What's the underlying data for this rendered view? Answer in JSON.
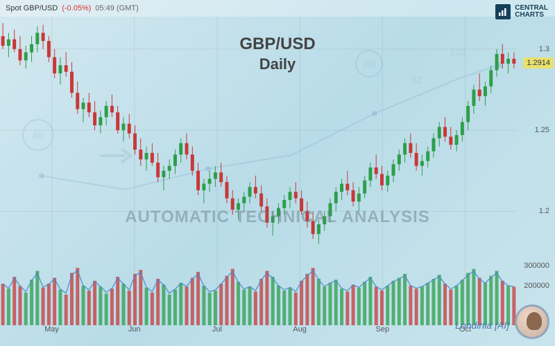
{
  "header": {
    "pair": "Spot GBP/USD",
    "change": "(-0.05%)",
    "time": "05:49 (GMT)"
  },
  "logo": {
    "line1": "CENTRAL",
    "line2": "CHARTS"
  },
  "title": {
    "pair": "GBP/USD",
    "timeframe": "Daily"
  },
  "watermark": "AUTOMATIC TECHNICAL ANALYSIS",
  "ai_label": "Londinia [AI]",
  "chart": {
    "type": "candlestick",
    "ylim": [
      1.175,
      1.32
    ],
    "yticks": [
      1.2,
      1.25,
      1.3
    ],
    "current_price": 1.2914,
    "current_price_label": "1.2914",
    "months": [
      "May",
      "Jun",
      "Jul",
      "Aug",
      "Sep",
      "Oct"
    ],
    "month_positions": [
      0.1,
      0.26,
      0.42,
      0.58,
      0.74,
      0.9
    ],
    "volume_ticks": [
      200000,
      300000
    ],
    "volume_max": 350000,
    "bg_gradient": [
      "#d4e8f0",
      "#b8dce8"
    ],
    "grid_color": "rgba(100,100,100,0.12)",
    "up_color": "#2e9e4a",
    "down_color": "#c83838",
    "volume_line_color": "#4a8ac8",
    "candles": [
      {
        "o": 1.308,
        "h": 1.316,
        "l": 1.3,
        "c": 1.302,
        "v": 210000
      },
      {
        "o": 1.302,
        "h": 1.31,
        "l": 1.295,
        "c": 1.306,
        "v": 185000
      },
      {
        "o": 1.306,
        "h": 1.312,
        "l": 1.298,
        "c": 1.3,
        "v": 245000
      },
      {
        "o": 1.3,
        "h": 1.308,
        "l": 1.29,
        "c": 1.293,
        "v": 198000
      },
      {
        "o": 1.293,
        "h": 1.302,
        "l": 1.288,
        "c": 1.298,
        "v": 165000
      },
      {
        "o": 1.298,
        "h": 1.308,
        "l": 1.292,
        "c": 1.303,
        "v": 230000
      },
      {
        "o": 1.303,
        "h": 1.314,
        "l": 1.298,
        "c": 1.31,
        "v": 275000
      },
      {
        "o": 1.31,
        "h": 1.315,
        "l": 1.3,
        "c": 1.305,
        "v": 190000
      },
      {
        "o": 1.305,
        "h": 1.308,
        "l": 1.292,
        "c": 1.295,
        "v": 210000
      },
      {
        "o": 1.295,
        "h": 1.3,
        "l": 1.282,
        "c": 1.285,
        "v": 240000
      },
      {
        "o": 1.285,
        "h": 1.295,
        "l": 1.278,
        "c": 1.29,
        "v": 180000
      },
      {
        "o": 1.29,
        "h": 1.298,
        "l": 1.283,
        "c": 1.286,
        "v": 155000
      },
      {
        "o": 1.286,
        "h": 1.292,
        "l": 1.27,
        "c": 1.273,
        "v": 265000
      },
      {
        "o": 1.273,
        "h": 1.28,
        "l": 1.26,
        "c": 1.263,
        "v": 290000
      },
      {
        "o": 1.263,
        "h": 1.27,
        "l": 1.255,
        "c": 1.267,
        "v": 200000
      },
      {
        "o": 1.267,
        "h": 1.273,
        "l": 1.258,
        "c": 1.261,
        "v": 175000
      },
      {
        "o": 1.261,
        "h": 1.268,
        "l": 1.25,
        "c": 1.253,
        "v": 225000
      },
      {
        "o": 1.253,
        "h": 1.262,
        "l": 1.248,
        "c": 1.258,
        "v": 195000
      },
      {
        "o": 1.258,
        "h": 1.268,
        "l": 1.253,
        "c": 1.265,
        "v": 160000
      },
      {
        "o": 1.265,
        "h": 1.272,
        "l": 1.258,
        "c": 1.261,
        "v": 185000
      },
      {
        "o": 1.261,
        "h": 1.265,
        "l": 1.248,
        "c": 1.25,
        "v": 245000
      },
      {
        "o": 1.25,
        "h": 1.258,
        "l": 1.243,
        "c": 1.254,
        "v": 210000
      },
      {
        "o": 1.254,
        "h": 1.26,
        "l": 1.245,
        "c": 1.248,
        "v": 175000
      },
      {
        "o": 1.248,
        "h": 1.253,
        "l": 1.235,
        "c": 1.238,
        "v": 260000
      },
      {
        "o": 1.238,
        "h": 1.245,
        "l": 1.228,
        "c": 1.232,
        "v": 280000
      },
      {
        "o": 1.232,
        "h": 1.24,
        "l": 1.225,
        "c": 1.236,
        "v": 190000
      },
      {
        "o": 1.236,
        "h": 1.242,
        "l": 1.228,
        "c": 1.23,
        "v": 165000
      },
      {
        "o": 1.23,
        "h": 1.236,
        "l": 1.218,
        "c": 1.221,
        "v": 235000
      },
      {
        "o": 1.221,
        "h": 1.228,
        "l": 1.213,
        "c": 1.225,
        "v": 205000
      },
      {
        "o": 1.225,
        "h": 1.232,
        "l": 1.22,
        "c": 1.228,
        "v": 155000
      },
      {
        "o": 1.228,
        "h": 1.238,
        "l": 1.223,
        "c": 1.235,
        "v": 180000
      },
      {
        "o": 1.235,
        "h": 1.245,
        "l": 1.23,
        "c": 1.242,
        "v": 215000
      },
      {
        "o": 1.242,
        "h": 1.248,
        "l": 1.232,
        "c": 1.235,
        "v": 195000
      },
      {
        "o": 1.235,
        "h": 1.24,
        "l": 1.222,
        "c": 1.225,
        "v": 240000
      },
      {
        "o": 1.225,
        "h": 1.23,
        "l": 1.21,
        "c": 1.213,
        "v": 270000
      },
      {
        "o": 1.213,
        "h": 1.22,
        "l": 1.205,
        "c": 1.217,
        "v": 200000
      },
      {
        "o": 1.217,
        "h": 1.225,
        "l": 1.212,
        "c": 1.22,
        "v": 165000
      },
      {
        "o": 1.22,
        "h": 1.228,
        "l": 1.215,
        "c": 1.224,
        "v": 175000
      },
      {
        "o": 1.224,
        "h": 1.23,
        "l": 1.215,
        "c": 1.218,
        "v": 210000
      },
      {
        "o": 1.218,
        "h": 1.222,
        "l": 1.205,
        "c": 1.208,
        "v": 250000
      },
      {
        "o": 1.208,
        "h": 1.213,
        "l": 1.198,
        "c": 1.201,
        "v": 285000
      },
      {
        "o": 1.201,
        "h": 1.208,
        "l": 1.195,
        "c": 1.205,
        "v": 220000
      },
      {
        "o": 1.205,
        "h": 1.212,
        "l": 1.2,
        "c": 1.209,
        "v": 180000
      },
      {
        "o": 1.209,
        "h": 1.218,
        "l": 1.205,
        "c": 1.215,
        "v": 195000
      },
      {
        "o": 1.215,
        "h": 1.222,
        "l": 1.208,
        "c": 1.211,
        "v": 170000
      },
      {
        "o": 1.211,
        "h": 1.216,
        "l": 1.2,
        "c": 1.203,
        "v": 235000
      },
      {
        "o": 1.203,
        "h": 1.208,
        "l": 1.19,
        "c": 1.193,
        "v": 275000
      },
      {
        "o": 1.193,
        "h": 1.2,
        "l": 1.185,
        "c": 1.197,
        "v": 245000
      },
      {
        "o": 1.197,
        "h": 1.205,
        "l": 1.192,
        "c": 1.202,
        "v": 200000
      },
      {
        "o": 1.202,
        "h": 1.21,
        "l": 1.198,
        "c": 1.207,
        "v": 175000
      },
      {
        "o": 1.207,
        "h": 1.215,
        "l": 1.202,
        "c": 1.212,
        "v": 190000
      },
      {
        "o": 1.212,
        "h": 1.218,
        "l": 1.205,
        "c": 1.208,
        "v": 165000
      },
      {
        "o": 1.208,
        "h": 1.213,
        "l": 1.198,
        "c": 1.2,
        "v": 225000
      },
      {
        "o": 1.2,
        "h": 1.206,
        "l": 1.19,
        "c": 1.194,
        "v": 260000
      },
      {
        "o": 1.194,
        "h": 1.2,
        "l": 1.183,
        "c": 1.186,
        "v": 290000
      },
      {
        "o": 1.186,
        "h": 1.195,
        "l": 1.18,
        "c": 1.192,
        "v": 235000
      },
      {
        "o": 1.192,
        "h": 1.2,
        "l": 1.188,
        "c": 1.197,
        "v": 195000
      },
      {
        "o": 1.197,
        "h": 1.208,
        "l": 1.193,
        "c": 1.205,
        "v": 215000
      },
      {
        "o": 1.205,
        "h": 1.215,
        "l": 1.2,
        "c": 1.212,
        "v": 230000
      },
      {
        "o": 1.212,
        "h": 1.22,
        "l": 1.207,
        "c": 1.217,
        "v": 185000
      },
      {
        "o": 1.217,
        "h": 1.225,
        "l": 1.21,
        "c": 1.213,
        "v": 170000
      },
      {
        "o": 1.213,
        "h": 1.218,
        "l": 1.203,
        "c": 1.206,
        "v": 205000
      },
      {
        "o": 1.206,
        "h": 1.215,
        "l": 1.2,
        "c": 1.211,
        "v": 190000
      },
      {
        "o": 1.211,
        "h": 1.222,
        "l": 1.208,
        "c": 1.219,
        "v": 220000
      },
      {
        "o": 1.219,
        "h": 1.23,
        "l": 1.215,
        "c": 1.227,
        "v": 245000
      },
      {
        "o": 1.227,
        "h": 1.235,
        "l": 1.22,
        "c": 1.223,
        "v": 195000
      },
      {
        "o": 1.223,
        "h": 1.228,
        "l": 1.213,
        "c": 1.216,
        "v": 175000
      },
      {
        "o": 1.216,
        "h": 1.225,
        "l": 1.212,
        "c": 1.222,
        "v": 200000
      },
      {
        "o": 1.222,
        "h": 1.232,
        "l": 1.218,
        "c": 1.229,
        "v": 225000
      },
      {
        "o": 1.229,
        "h": 1.238,
        "l": 1.225,
        "c": 1.235,
        "v": 240000
      },
      {
        "o": 1.235,
        "h": 1.245,
        "l": 1.23,
        "c": 1.242,
        "v": 260000
      },
      {
        "o": 1.242,
        "h": 1.248,
        "l": 1.233,
        "c": 1.236,
        "v": 200000
      },
      {
        "o": 1.236,
        "h": 1.242,
        "l": 1.225,
        "c": 1.228,
        "v": 185000
      },
      {
        "o": 1.228,
        "h": 1.235,
        "l": 1.222,
        "c": 1.231,
        "v": 195000
      },
      {
        "o": 1.231,
        "h": 1.24,
        "l": 1.227,
        "c": 1.237,
        "v": 215000
      },
      {
        "o": 1.237,
        "h": 1.248,
        "l": 1.233,
        "c": 1.245,
        "v": 235000
      },
      {
        "o": 1.245,
        "h": 1.255,
        "l": 1.24,
        "c": 1.252,
        "v": 255000
      },
      {
        "o": 1.252,
        "h": 1.258,
        "l": 1.243,
        "c": 1.246,
        "v": 210000
      },
      {
        "o": 1.246,
        "h": 1.252,
        "l": 1.238,
        "c": 1.241,
        "v": 180000
      },
      {
        "o": 1.241,
        "h": 1.25,
        "l": 1.237,
        "c": 1.247,
        "v": 200000
      },
      {
        "o": 1.247,
        "h": 1.258,
        "l": 1.243,
        "c": 1.255,
        "v": 230000
      },
      {
        "o": 1.255,
        "h": 1.268,
        "l": 1.25,
        "c": 1.265,
        "v": 265000
      },
      {
        "o": 1.265,
        "h": 1.278,
        "l": 1.26,
        "c": 1.275,
        "v": 285000
      },
      {
        "o": 1.275,
        "h": 1.285,
        "l": 1.268,
        "c": 1.271,
        "v": 240000
      },
      {
        "o": 1.271,
        "h": 1.28,
        "l": 1.265,
        "c": 1.277,
        "v": 215000
      },
      {
        "o": 1.277,
        "h": 1.29,
        "l": 1.273,
        "c": 1.287,
        "v": 250000
      },
      {
        "o": 1.287,
        "h": 1.3,
        "l": 1.283,
        "c": 1.297,
        "v": 275000
      },
      {
        "o": 1.297,
        "h": 1.303,
        "l": 1.288,
        "c": 1.291,
        "v": 225000
      },
      {
        "o": 1.291,
        "h": 1.298,
        "l": 1.285,
        "c": 1.294,
        "v": 200000
      },
      {
        "o": 1.294,
        "h": 1.298,
        "l": 1.288,
        "c": 1.291,
        "v": 195000
      }
    ]
  }
}
